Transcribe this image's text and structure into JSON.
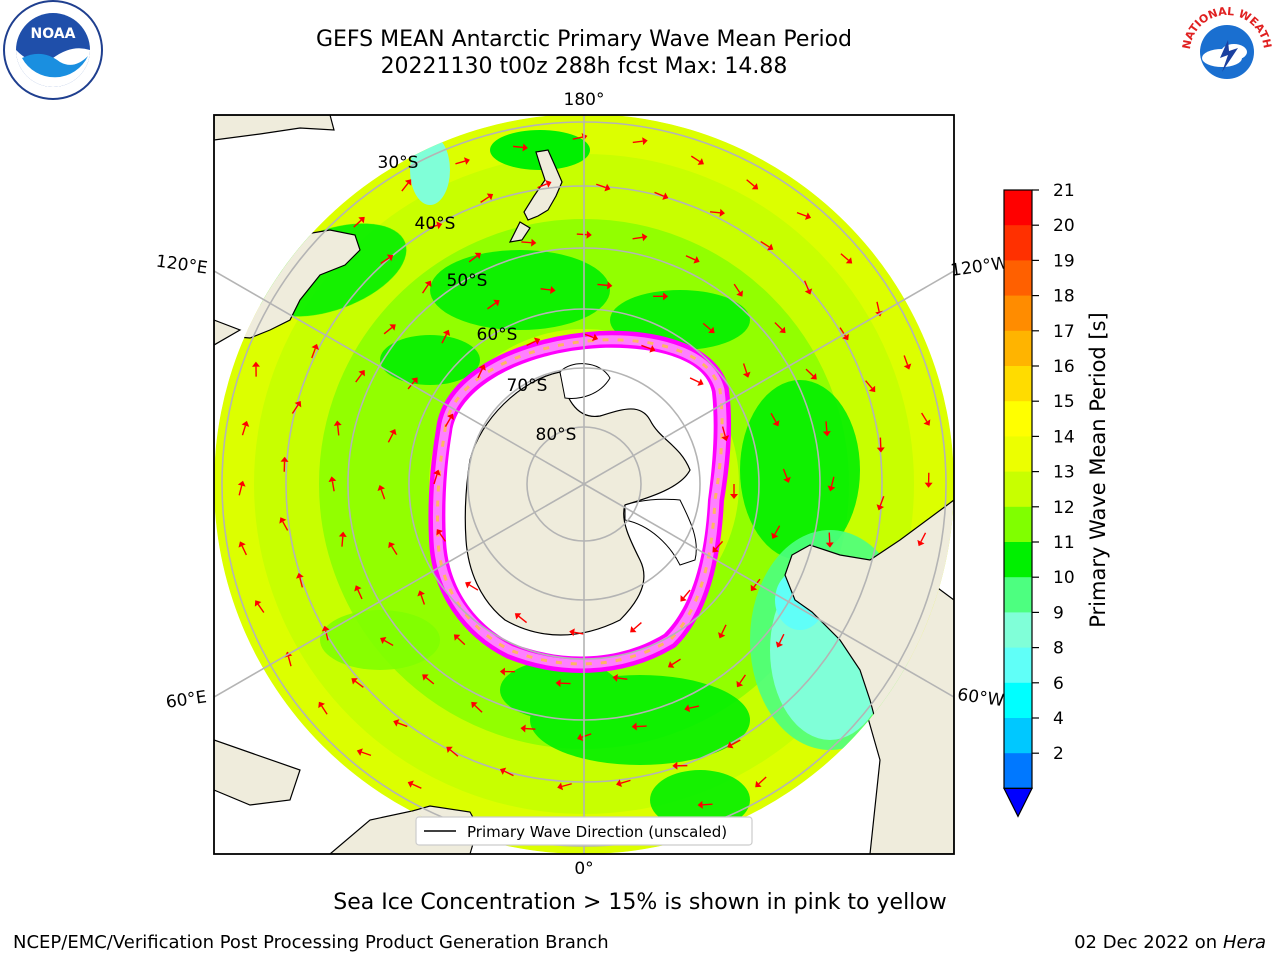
{
  "title_line1": "GEFS MEAN Antarctic Primary Wave Mean Period",
  "title_line2": "20221130 t00z 288h fcst   Max: 14.88",
  "colorbar": {
    "label": "Primary Wave Mean Period [s]",
    "ticks": [
      "21",
      "20",
      "19",
      "18",
      "17",
      "16",
      "15",
      "14",
      "13",
      "12",
      "11",
      "10",
      "9",
      "8",
      "6",
      "4",
      "2"
    ],
    "colors": [
      "#ff0000",
      "#ff3000",
      "#ff6000",
      "#ff8c00",
      "#ffb400",
      "#ffdc00",
      "#ffff00",
      "#ecff00",
      "#c8ff00",
      "#80ff00",
      "#00f000",
      "#4dff80",
      "#80ffd8",
      "#60fff8",
      "#00ffff",
      "#00c8ff",
      "#0078ff"
    ],
    "extend_color": "#0000ff"
  },
  "map": {
    "lon_labels": [
      "180°",
      "120°E",
      "120°W",
      "60°E",
      "60°W",
      "0°"
    ],
    "lat_labels": [
      "30°S",
      "40°S",
      "50°S",
      "60°S",
      "70°S",
      "80°S"
    ],
    "legend_label": "Primary Wave Direction (unscaled)",
    "arrow_color": "#ff0000",
    "land_color": "#efecdc",
    "ice_color": "#ffffff",
    "sea_ice_colors": [
      "#ff00ff",
      "#ff80ff",
      "#ffb464"
    ]
  },
  "caption": "Sea Ice Concentration > 15% is shown in pink to yellow",
  "footer_left": "NCEP/EMC/Verification Post Processing Product Generation Branch",
  "footer_date": "02 Dec 2022",
  "footer_on": "on",
  "footer_machine": "Hera",
  "logos": {
    "noaa_text": "NOAA",
    "nws_text": "NATIONAL WEATHER SERVICE"
  }
}
